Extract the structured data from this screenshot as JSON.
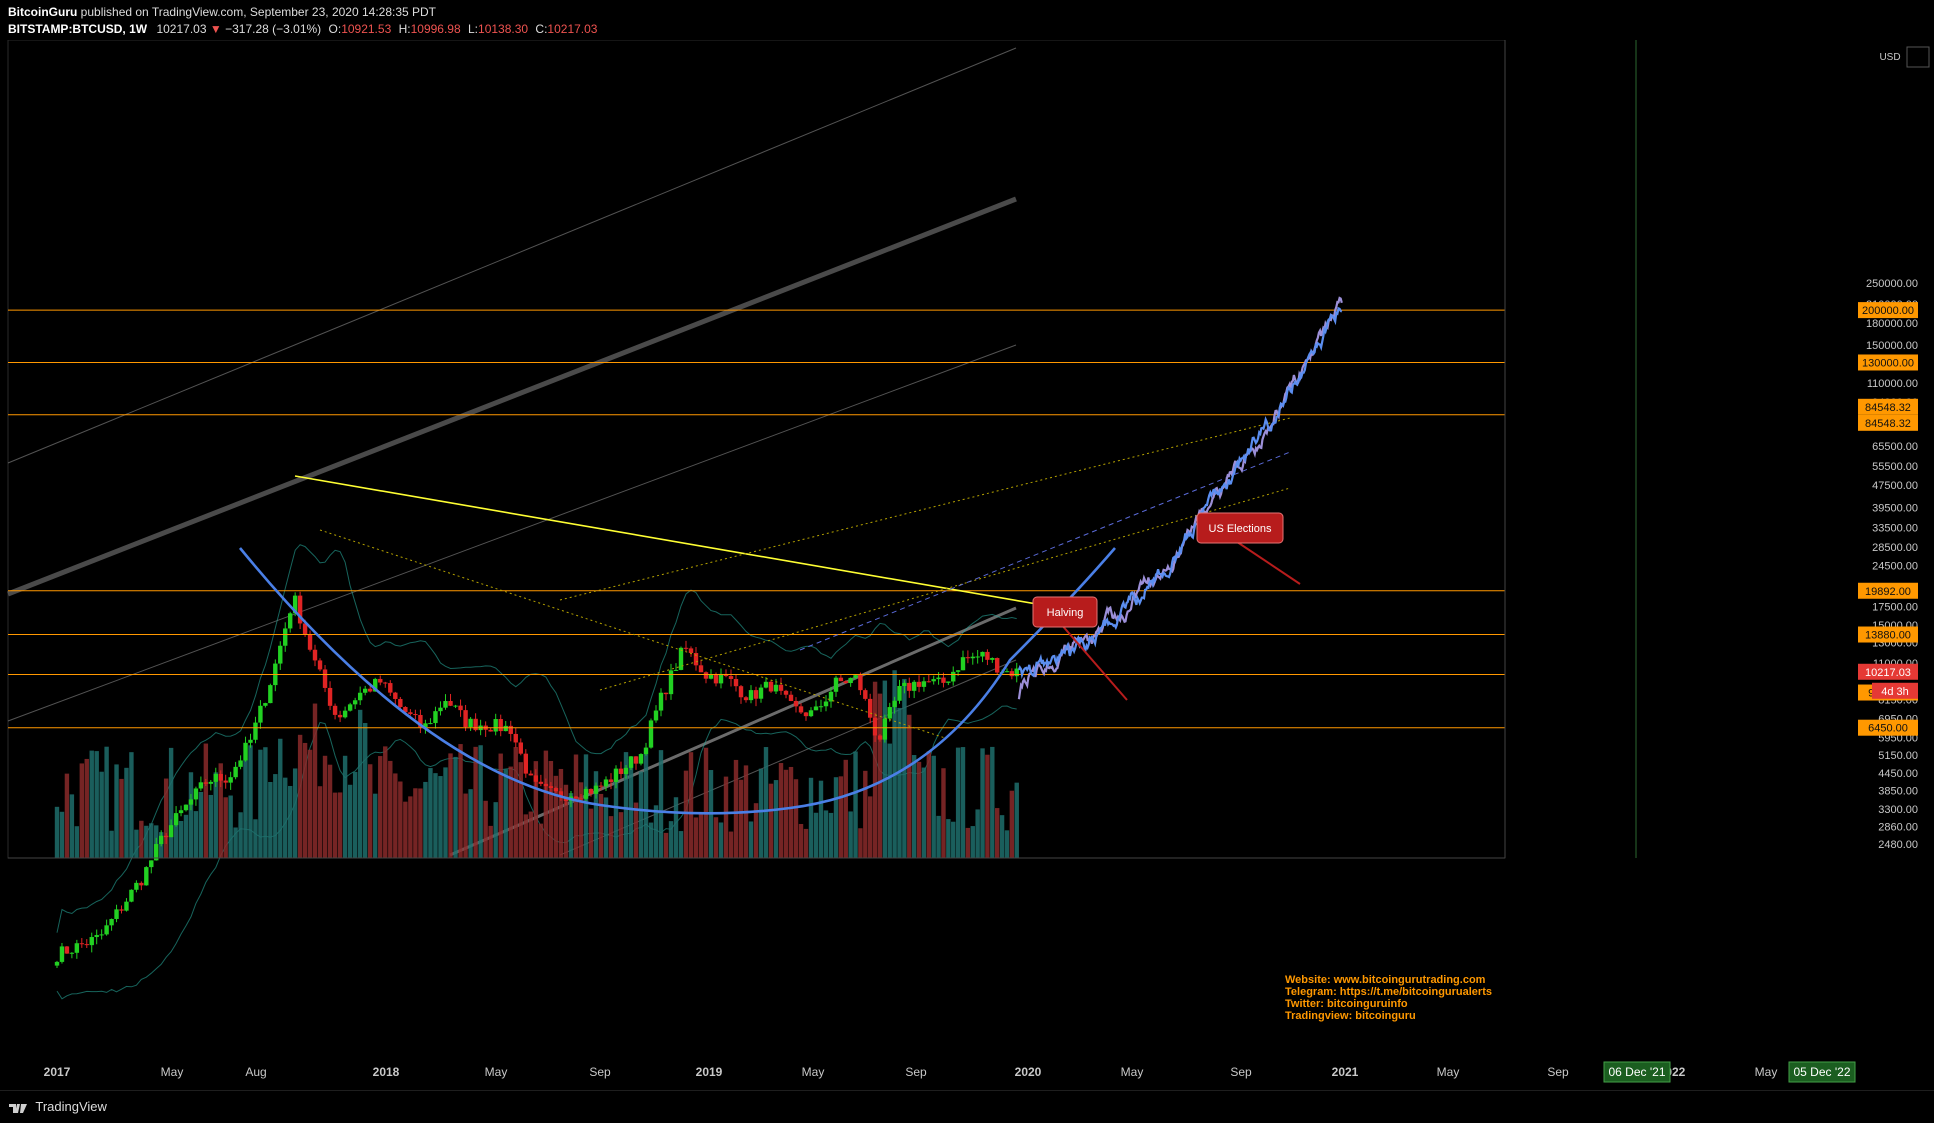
{
  "header": {
    "author": "BitcoinGuru",
    "published_text": "published on TradingView.com, September 23, 2020 14:28:35 PDT",
    "symbol": "BITSTAMP:BTCUSD, 1W",
    "last": "10217.03",
    "change": "−317.28 (−3.01%)",
    "open_label": "O:",
    "open": "10921.53",
    "high_label": "H:",
    "high": "10996.98",
    "low_label": "L:",
    "low": "10138.30",
    "close_label": "C:",
    "close": "10217.03"
  },
  "footer": {
    "brand": "TradingView"
  },
  "colors": {
    "background": "#000000",
    "up": "#22d122",
    "down": "#e02424",
    "vol_up": "#1f6f6c",
    "vol_down": "#8a2a2a",
    "horizontal": "#ff9800",
    "trend": "#ffff33",
    "curve": "#4a7fe6",
    "proj_blue": "#5b8ef0",
    "proj_purple": "#9c8fd8",
    "callout": "#b71c1c",
    "info_text": "#ff9800"
  },
  "annotations": {
    "us_elections": "US Elections",
    "halving": "Halving",
    "info": [
      "Website: www.bitcoingurutrading.com",
      "Telegram: https://t.me/bitcoingurualerts",
      "Twitter: bitcoinguruinfo",
      "Tradingview: bitcoinguru"
    ]
  },
  "chart_data": {
    "type": "candlestick",
    "symbol": "BITSTAMP:BTCUSD",
    "timeframe": "1W",
    "y_scale": "log",
    "currency": "USD",
    "y_ticks": [
      "250000.00",
      "210000.00",
      "180000.00",
      "150000.00",
      "110000.00",
      "94000.00",
      "65500.00",
      "55500.00",
      "47500.00",
      "39500.00",
      "33500.00",
      "28500.00",
      "24500.00",
      "17500.00",
      "15000.00",
      "13000.00",
      "11000.00",
      "8150.00",
      "6950.00",
      "5950.00",
      "5150.00",
      "4450.00",
      "3850.00",
      "3300.00",
      "2860.00",
      "2480.00"
    ],
    "x_ticks": [
      "2017",
      "May",
      "Aug",
      "2018",
      "May",
      "Sep",
      "2019",
      "May",
      "Sep",
      "2020",
      "May",
      "Sep",
      "2021",
      "May",
      "Sep",
      "2022",
      "May"
    ],
    "horizontal_levels": [
      {
        "value": 200000,
        "label": "200000.00"
      },
      {
        "value": 130000,
        "label": "130000.00"
      },
      {
        "value": 84548.32,
        "label": "84548.32"
      },
      {
        "value": 19892,
        "label": "19892.00"
      },
      {
        "value": 13880,
        "label": "13880.00"
      },
      {
        "value": 9988.39,
        "label": "9988.39"
      },
      {
        "value": 6450,
        "label": "6450.00"
      }
    ],
    "price_tags": [
      {
        "label": "10217.03",
        "color": "#e53935"
      },
      {
        "label": "4d 3h",
        "color": "#e53935"
      },
      {
        "label": "84548.32",
        "color": "#ff9800"
      },
      {
        "label": "9988.39",
        "color": "#ff9800"
      }
    ],
    "date_tags": [
      "06 Dec '21",
      "05 Dec '22"
    ],
    "series": [
      {
        "name": "BTCUSD weekly",
        "points": [
          [
            "2017-01",
            1000
          ],
          [
            "2017-03",
            1150
          ],
          [
            "2017-05",
            1900
          ],
          [
            "2017-06",
            2700
          ],
          [
            "2017-08",
            4200
          ],
          [
            "2017-09",
            4300
          ],
          [
            "2017-10",
            5800
          ],
          [
            "2017-11",
            9800
          ],
          [
            "2017-12",
            19000
          ],
          [
            "2018-01",
            11000
          ],
          [
            "2018-02",
            7000
          ],
          [
            "2018-03",
            8500
          ],
          [
            "2018-04",
            9400
          ],
          [
            "2018-05",
            7500
          ],
          [
            "2018-06",
            6400
          ],
          [
            "2018-07",
            8200
          ],
          [
            "2018-08",
            6700
          ],
          [
            "2018-09",
            6600
          ],
          [
            "2018-10",
            6400
          ],
          [
            "2018-11",
            4000
          ],
          [
            "2018-12",
            3700
          ],
          [
            "2019-02",
            3900
          ],
          [
            "2019-04",
            5200
          ],
          [
            "2019-05",
            8500
          ],
          [
            "2019-06",
            12500
          ],
          [
            "2019-07",
            10000
          ],
          [
            "2019-08",
            9600
          ],
          [
            "2019-09",
            8300
          ],
          [
            "2019-10",
            9200
          ],
          [
            "2019-11",
            7500
          ],
          [
            "2019-12",
            7200
          ],
          [
            "2020-01",
            9300
          ],
          [
            "2020-02",
            9700
          ],
          [
            "2020-03",
            5800
          ],
          [
            "2020-04",
            8700
          ],
          [
            "2020-05",
            9500
          ],
          [
            "2020-06",
            9200
          ],
          [
            "2020-07",
            11300
          ],
          [
            "2020-08",
            11700
          ],
          [
            "2020-09",
            10217
          ]
        ]
      }
    ]
  }
}
